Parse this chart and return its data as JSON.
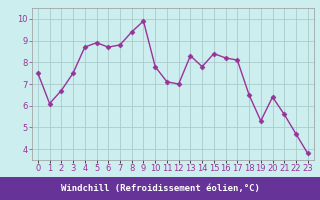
{
  "x": [
    0,
    1,
    2,
    3,
    4,
    5,
    6,
    7,
    8,
    9,
    10,
    11,
    12,
    13,
    14,
    15,
    16,
    17,
    18,
    19,
    20,
    21,
    22,
    23
  ],
  "y": [
    7.5,
    6.1,
    6.7,
    7.5,
    8.7,
    8.9,
    8.7,
    8.8,
    9.4,
    9.9,
    7.8,
    7.1,
    7.0,
    8.3,
    7.8,
    8.4,
    8.2,
    8.1,
    6.5,
    5.3,
    6.4,
    5.6,
    4.7,
    3.8
  ],
  "line_color": "#993399",
  "marker_color": "#993399",
  "bg_color": "#cceeee",
  "grid_color": "#aacccc",
  "xlabel": "Windchill (Refroidissement éolien,°C)",
  "xlabel_color": "#ffffff",
  "xlabel_bg": "#663399",
  "ylim": [
    3.5,
    10.5
  ],
  "xlim": [
    -0.5,
    23.5
  ],
  "yticks": [
    4,
    5,
    6,
    7,
    8,
    9,
    10
  ],
  "font_color": "#993399",
  "tick_fontsize": 6,
  "xlabel_fontsize": 6.5
}
